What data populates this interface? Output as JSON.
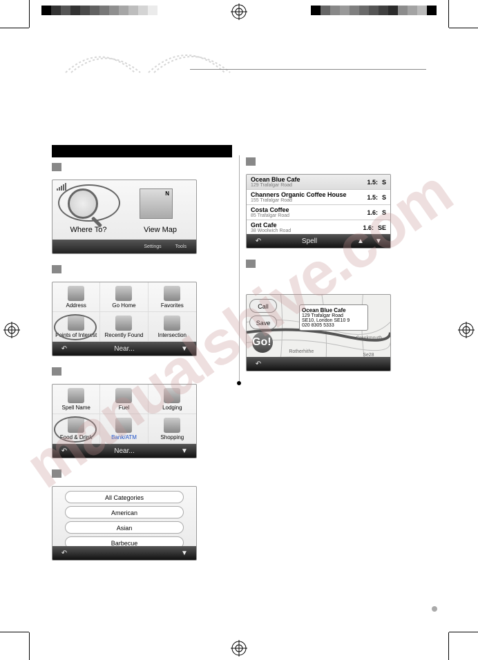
{
  "watermark": "manualshive.com",
  "colorbars": {
    "left": [
      "#000000",
      "#333333",
      "#555555",
      "#323232",
      "#4a4a4a",
      "#616161",
      "#787878",
      "#8f8f8f",
      "#a6a6a6",
      "#bdbdbd",
      "#d4d4d4",
      "#ebebeb",
      "#ffffff"
    ],
    "right": [
      "#000000",
      "#666666",
      "#888888",
      "#999999",
      "#7f7f7f",
      "#6a6a6a",
      "#555555",
      "#404040",
      "#2b2b2b",
      "#8c8c8c",
      "#a3a3a3",
      "#bababa",
      "#000000"
    ]
  },
  "home": {
    "where_to": "Where To?",
    "view_map": "View Map",
    "settings": "Settings",
    "tools": "Tools"
  },
  "poi_menu": {
    "items": [
      "Address",
      "Go Home",
      "Favorites",
      "Points of Interest",
      "Recently Found",
      "Intersection"
    ],
    "bar_label": "Near..."
  },
  "poi_cat": {
    "items": [
      "Spell Name",
      "Fuel",
      "Lodging",
      "Food & Drink",
      "Bank/ATM",
      "Shopping"
    ],
    "bar_label": "Near..."
  },
  "food_cats": [
    "All Categories",
    "American",
    "Asian",
    "Barbecue"
  ],
  "results": [
    {
      "name": "Ocean Blue Cafe",
      "addr": "129 Trafalgar Road",
      "dist": "1.5:",
      "dir": "S"
    },
    {
      "name": "Channers Organic Coffee House",
      "addr": "155 Trafalgar Road",
      "dist": "1.5:",
      "dir": "S"
    },
    {
      "name": "Costa Coffee",
      "addr": "85 Trafalgar Road",
      "dist": "1.6:",
      "dir": "S"
    },
    {
      "name": "Gnt Cafe",
      "addr": "38 Woolwich Road",
      "dist": "1.6:",
      "dir": "SE"
    }
  ],
  "results_bar": "Spell",
  "map": {
    "call": "Call",
    "save": "Save",
    "go": "Go!",
    "balloon_name": "Ocean Blue Cafe",
    "balloon_addr1": "129 Trafalgar Road",
    "balloon_addr2": "SE10, London SE10 9",
    "balloon_phone": "020 8305 5333",
    "labels": [
      "Barking",
      "Creekmouth",
      "Rotherhithe",
      "Greenwich",
      "Se28"
    ]
  }
}
